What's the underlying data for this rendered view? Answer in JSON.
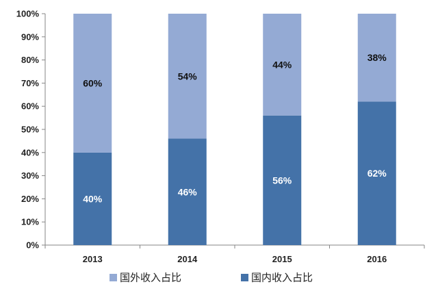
{
  "chart_data": {
    "type": "bar",
    "stacked": true,
    "categories": [
      "2013",
      "2014",
      "2015",
      "2016"
    ],
    "series": [
      {
        "name": "国内收入占比",
        "values": [
          40,
          46,
          56,
          62
        ],
        "labels": [
          "40%",
          "46%",
          "56%",
          "62%"
        ],
        "color": "#4472a8",
        "label_color": "#ffffff"
      },
      {
        "name": "国外收入占比",
        "values": [
          60,
          54,
          44,
          38
        ],
        "labels": [
          "60%",
          "54%",
          "44%",
          "38%"
        ],
        "color": "#94aad4",
        "label_color": "#111111"
      }
    ],
    "legend_order": [
      1,
      0
    ],
    "y_ticks": [
      "0%",
      "10%",
      "20%",
      "30%",
      "40%",
      "50%",
      "60%",
      "70%",
      "80%",
      "90%",
      "100%"
    ],
    "ylim": [
      0,
      100
    ],
    "grid": false,
    "legend_position": "bottom",
    "axis_color": "#868686",
    "title": "",
    "xlabel": "",
    "ylabel": ""
  }
}
